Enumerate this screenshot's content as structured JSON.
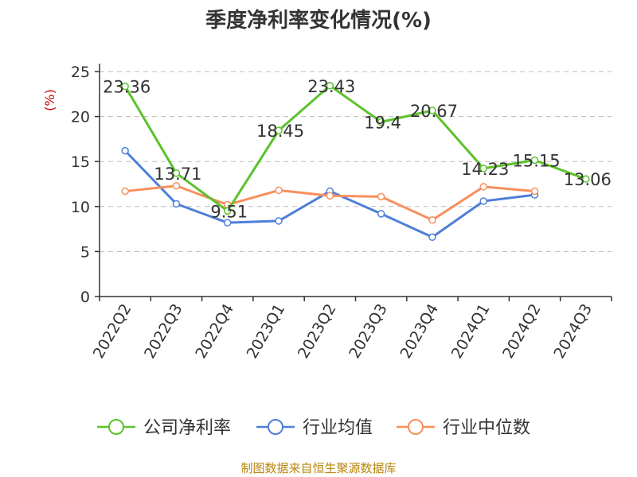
{
  "chart_data": {
    "type": "line",
    "title": "季度净利率变化情况(%)",
    "ylabel": "(%)",
    "xlabel": "",
    "ylim": [
      0,
      25
    ],
    "yticks": [
      0,
      5,
      10,
      15,
      20,
      25
    ],
    "grid": true,
    "legend_position": "bottom",
    "categories": [
      "2022Q2",
      "2022Q3",
      "2022Q4",
      "2023Q1",
      "2023Q2",
      "2023Q3",
      "2023Q4",
      "2024Q1",
      "2024Q2",
      "2024Q3"
    ],
    "series": [
      {
        "name": "公司净利率",
        "color": "#5cc22b",
        "values": [
          23.36,
          13.71,
          9.51,
          18.45,
          23.43,
          19.4,
          20.67,
          14.23,
          15.15,
          13.06
        ],
        "show_labels": true
      },
      {
        "name": "行业均值",
        "color": "#4e7fd9",
        "values": [
          16.2,
          10.3,
          8.2,
          8.4,
          11.7,
          9.2,
          6.6,
          10.6,
          11.3,
          null
        ],
        "show_labels": false
      },
      {
        "name": "行业中位数",
        "color": "#f78f5d",
        "values": [
          11.7,
          12.3,
          10.2,
          11.8,
          11.2,
          11.1,
          8.5,
          12.2,
          11.7,
          null
        ],
        "show_labels": false
      }
    ]
  },
  "footer": {
    "source": "制图数据来自恒生聚源数据库",
    "source_color": "#b8860b"
  }
}
